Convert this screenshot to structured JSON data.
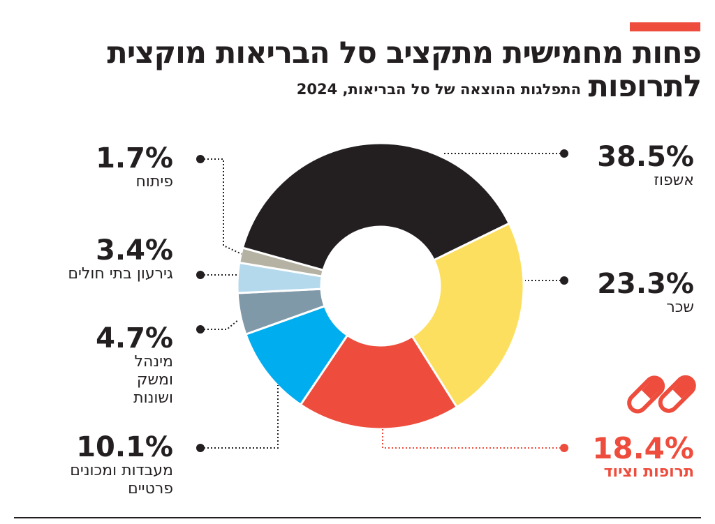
{
  "header": {
    "title_line1": "פחות מחמישית מתקציב סל הבריאות מוקצית",
    "title_line2": "לתרופות",
    "subtitle": "התפלגות ההוצאה של סל הבריאות, 2024",
    "accent_color": "#ee4c3c"
  },
  "chart_data": {
    "type": "pie",
    "donut": true,
    "title": "פחות מחמישית מתקציב סל הבריאות מוקצית לתרופות",
    "subtitle": "התפלגות ההוצאה של סל הבריאות, 2024",
    "unit": "%",
    "slices": [
      {
        "label": "שכר",
        "value": 23.3,
        "value_label": "23.3%",
        "color": "#fddf5f"
      },
      {
        "label": "תרופות וציוד",
        "value": 18.4,
        "value_label": "18.4%",
        "color": "#ee4c3c",
        "highlighted": true
      },
      {
        "label": "מעבדות ומכונים פרטיים",
        "value": 10.1,
        "value_label": "10.1%",
        "color": "#00adef"
      },
      {
        "label": "מינהל ומשק ושונות",
        "value": 4.7,
        "value_label": "4.7%",
        "color": "#7f99a8"
      },
      {
        "label": "גירעון בתי חולים",
        "value": 3.4,
        "value_label": "3.4%",
        "color": "#b5d9ec"
      },
      {
        "label": "פיתוח",
        "value": 1.7,
        "value_label": "1.7%",
        "color": "#b5b2a3"
      },
      {
        "label": "אשפוז",
        "value": 38.5,
        "value_label": "38.5%",
        "color": "#231f20"
      }
    ],
    "highlight_icon": "pills-icon"
  }
}
